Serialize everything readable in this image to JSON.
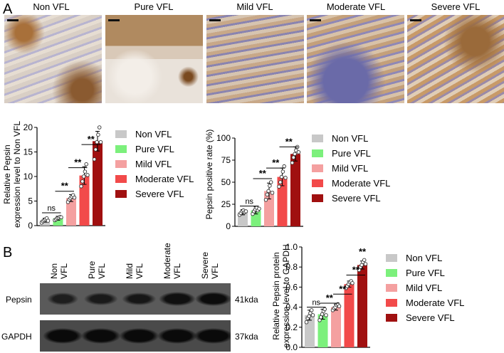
{
  "panel_labels": {
    "a": "A",
    "b": "B"
  },
  "ihc_titles": [
    "Non VFL",
    "Pure VFL",
    "Mild VFL",
    "Moderate VFL",
    "Severe VFL"
  ],
  "legend": [
    "Non VFL",
    "Pure VFL",
    "Mild VFL",
    "Moderate VFL",
    "Severe VFL"
  ],
  "colors": [
    "#c8c8c8",
    "#7cf07c",
    "#f4a0a0",
    "#f24a4a",
    "#a01010"
  ],
  "western": {
    "lane_labels": [
      [
        "Non",
        "VFL"
      ],
      [
        "Pure",
        "VFL"
      ],
      [
        "Mild",
        "VFL"
      ],
      [
        "Moderate",
        "VFL"
      ],
      [
        "Severe",
        "VFL"
      ]
    ],
    "bands": [
      {
        "name": "Pepsin",
        "size": "41kda"
      },
      {
        "name": "GAPDH",
        "size": "37kda"
      }
    ]
  },
  "chart_data": [
    {
      "type": "bar",
      "categories": [
        "Non VFL",
        "Pure VFL",
        "Mild VFL",
        "Moderate VFL",
        "Severe VFL"
      ],
      "values": [
        1.1,
        1.5,
        5.6,
        10.2,
        17.2
      ],
      "errors": [
        0.4,
        0.4,
        0.7,
        1.8,
        2.0
      ],
      "points": [
        [
          0.6,
          0.9,
          1.1,
          1.3,
          1.5,
          1.0
        ],
        [
          1.1,
          1.3,
          1.5,
          1.6,
          1.8,
          1.7
        ],
        [
          4.8,
          5.3,
          5.6,
          5.9,
          6.2,
          5.7
        ],
        [
          8.0,
          9.0,
          10.0,
          11.0,
          12.5,
          10.3
        ],
        [
          13.5,
          15.5,
          17.0,
          18.5,
          20.0,
          17.0
        ]
      ],
      "ylabel": [
        "Relative Pepsin",
        "expression level to Non VFL"
      ],
      "ylim": [
        0,
        20
      ],
      "yticks": [
        0,
        5,
        10,
        15,
        20
      ],
      "significance": [
        "ns",
        "**",
        "**",
        "**",
        "**"
      ]
    },
    {
      "type": "bar",
      "categories": [
        "Non VFL",
        "Pure VFL",
        "Mild VFL",
        "Moderate VFL",
        "Severe VFL"
      ],
      "values": [
        16,
        18,
        40,
        56,
        82
      ],
      "errors": [
        3,
        4,
        9,
        10,
        8
      ],
      "points": [
        [
          13,
          15,
          17,
          18,
          16,
          17
        ],
        [
          14,
          17,
          19,
          21,
          18,
          20
        ],
        [
          30,
          36,
          40,
          46,
          50,
          38
        ],
        [
          45,
          50,
          56,
          62,
          68,
          55
        ],
        [
          72,
          78,
          82,
          86,
          90,
          84
        ]
      ],
      "ylabel": [
        "Pepsin positive rate (%)"
      ],
      "ylim": [
        0,
        100
      ],
      "yticks": [
        0,
        25,
        50,
        75,
        100
      ],
      "significance": [
        "ns",
        "**",
        "**",
        "**"
      ]
    },
    {
      "type": "bar",
      "categories": [
        "Non VFL",
        "Pure VFL",
        "Mild VFL",
        "Moderate VFL",
        "Severe VFL"
      ],
      "values": [
        0.32,
        0.33,
        0.4,
        0.63,
        0.82
      ],
      "errors": [
        0.05,
        0.05,
        0.03,
        0.03,
        0.04
      ],
      "points": [
        [
          0.25,
          0.29,
          0.31,
          0.34,
          0.37,
          0.32
        ],
        [
          0.27,
          0.3,
          0.33,
          0.36,
          0.38,
          0.32
        ],
        [
          0.37,
          0.39,
          0.4,
          0.42,
          0.43,
          0.41
        ],
        [
          0.59,
          0.61,
          0.63,
          0.65,
          0.66,
          0.64
        ],
        [
          0.77,
          0.8,
          0.82,
          0.85,
          0.87,
          0.83
        ]
      ],
      "ylabel": [
        "Relative Pepsin protein",
        "expression level to GAPDH"
      ],
      "ylim": [
        0,
        1.0
      ],
      "yticks": [
        "0.0",
        "0.2",
        "0.4",
        "0.6",
        "0.8",
        "1.0"
      ],
      "significance": [
        "ns",
        "**",
        "**",
        "**",
        "**"
      ]
    }
  ]
}
